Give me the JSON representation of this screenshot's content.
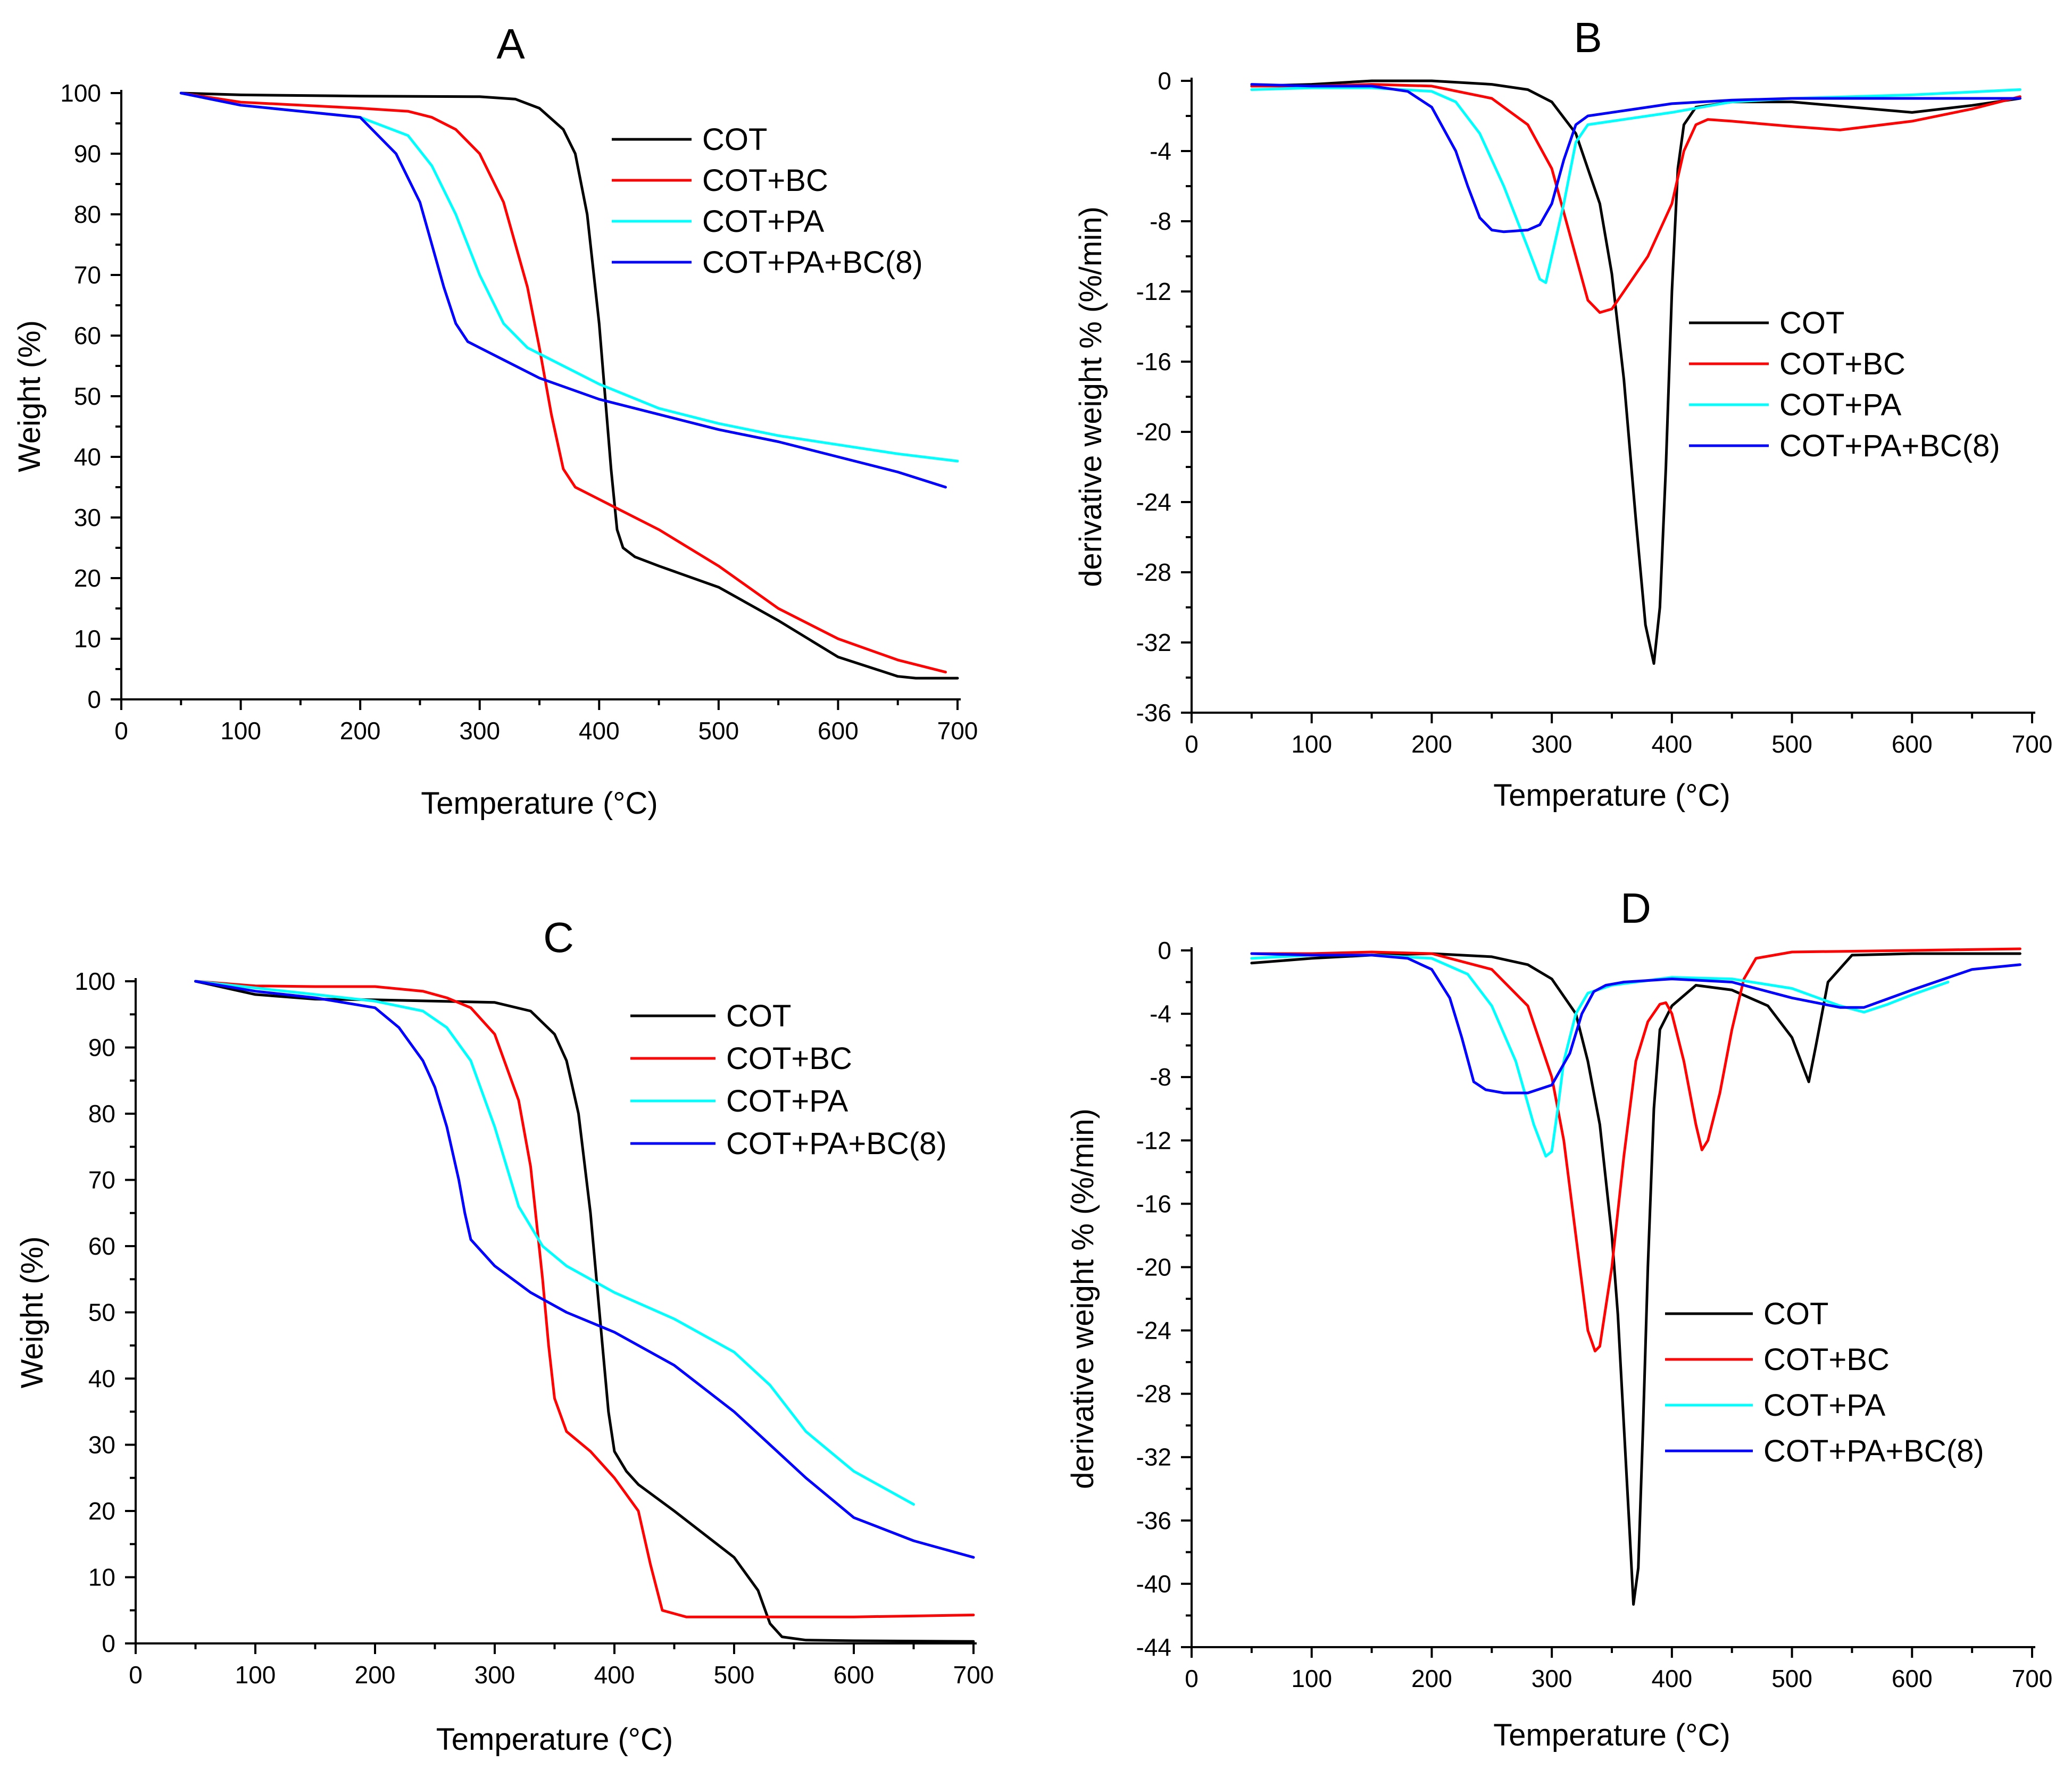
{
  "colors": {
    "COT": "#000000",
    "COT+BC": "#ff0000",
    "COT+PA": "#00ffff",
    "COT+PA+BC(8)": "#0000ff"
  },
  "chart_data": [
    {
      "panel": "A",
      "type": "line",
      "title": "A",
      "xlabel": "Temperature (°C)",
      "ylabel": "Weight (%)",
      "xlim": [
        0,
        700
      ],
      "ylim": [
        0,
        100
      ],
      "xticks": [
        0,
        100,
        200,
        300,
        400,
        500,
        600,
        700
      ],
      "yticks": [
        0,
        10,
        20,
        30,
        40,
        50,
        60,
        70,
        80,
        90,
        100
      ],
      "legend_position": "top-right",
      "series": [
        {
          "name": "COT",
          "x": [
            50,
            100,
            200,
            300,
            330,
            350,
            370,
            380,
            390,
            400,
            405,
            410,
            415,
            420,
            430,
            450,
            500,
            550,
            600,
            650,
            665,
            700
          ],
          "y": [
            100,
            99.7,
            99.5,
            99.4,
            99,
            97.5,
            94,
            90,
            80,
            62,
            50,
            38,
            28,
            25,
            23.5,
            22,
            18.5,
            13,
            7,
            3.8,
            3.5,
            3.5
          ]
        },
        {
          "name": "COT+BC",
          "x": [
            50,
            100,
            200,
            240,
            260,
            280,
            300,
            320,
            340,
            350,
            360,
            370,
            380,
            400,
            450,
            500,
            550,
            600,
            650,
            690
          ],
          "y": [
            100,
            98.5,
            97.5,
            97,
            96,
            94,
            90,
            82,
            68,
            58,
            47,
            38,
            35,
            33,
            28,
            22,
            15,
            10,
            6.5,
            4.5
          ]
        },
        {
          "name": "COT+PA",
          "x": [
            50,
            100,
            200,
            240,
            260,
            280,
            300,
            320,
            340,
            360,
            380,
            400,
            450,
            500,
            550,
            600,
            650,
            700
          ],
          "y": [
            100,
            98,
            96,
            93,
            88,
            80,
            70,
            62,
            58,
            56,
            54,
            52,
            48,
            45.5,
            43.5,
            42,
            40.5,
            39.3
          ]
        },
        {
          "name": "COT+PA+BC(8)",
          "x": [
            50,
            100,
            200,
            230,
            250,
            260,
            270,
            280,
            290,
            300,
            320,
            350,
            400,
            450,
            500,
            550,
            600,
            650,
            690
          ],
          "y": [
            100,
            98,
            96,
            90,
            82,
            75,
            68,
            62,
            59,
            58,
            56,
            53,
            49.5,
            47,
            44.5,
            42.5,
            40,
            37.5,
            35
          ]
        }
      ]
    },
    {
      "panel": "B",
      "type": "line",
      "title": "B",
      "xlabel": "Temperature (°C)",
      "ylabel": "derivative weight % (%/min)",
      "xlim": [
        0,
        700
      ],
      "ylim": [
        -36,
        0
      ],
      "xticks": [
        0,
        100,
        200,
        300,
        400,
        500,
        600,
        700
      ],
      "yticks": [
        0,
        -4,
        -8,
        -12,
        -16,
        -20,
        -24,
        -28,
        -32,
        -36
      ],
      "legend_position": "center-right",
      "series": [
        {
          "name": "COT",
          "x": [
            50,
            100,
            150,
            200,
            250,
            280,
            300,
            320,
            340,
            350,
            360,
            370,
            378,
            385,
            390,
            395,
            400,
            405,
            410,
            420,
            450,
            500,
            550,
            600,
            650,
            690
          ],
          "y": [
            -0.3,
            -0.2,
            0,
            0,
            -0.2,
            -0.5,
            -1.2,
            -3,
            -7,
            -11,
            -17,
            -25,
            -31,
            -33.2,
            -30,
            -22,
            -12,
            -5,
            -2.5,
            -1.5,
            -1.2,
            -1.2,
            -1.5,
            -1.8,
            -1.4,
            -1
          ]
        },
        {
          "name": "COT+BC",
          "x": [
            50,
            100,
            150,
            200,
            250,
            280,
            300,
            320,
            330,
            340,
            350,
            360,
            380,
            400,
            410,
            420,
            430,
            450,
            500,
            540,
            600,
            650,
            690
          ],
          "y": [
            -0.3,
            -0.3,
            -0.2,
            -0.3,
            -1,
            -2.5,
            -5,
            -10,
            -12.5,
            -13.2,
            -13,
            -12,
            -10,
            -7,
            -4,
            -2.5,
            -2.2,
            -2.3,
            -2.6,
            -2.8,
            -2.3,
            -1.6,
            -0.9
          ]
        },
        {
          "name": "COT+PA",
          "x": [
            50,
            100,
            150,
            200,
            220,
            240,
            260,
            280,
            290,
            295,
            300,
            310,
            320,
            330,
            350,
            400,
            450,
            500,
            600,
            690
          ],
          "y": [
            -0.5,
            -0.4,
            -0.4,
            -0.6,
            -1.2,
            -3,
            -6,
            -9.5,
            -11.3,
            -11.5,
            -10,
            -7,
            -3.5,
            -2.5,
            -2.3,
            -1.8,
            -1.2,
            -1,
            -0.8,
            -0.5
          ]
        },
        {
          "name": "COT+PA+BC(8)",
          "x": [
            50,
            100,
            150,
            180,
            200,
            220,
            230,
            240,
            250,
            260,
            280,
            290,
            300,
            310,
            320,
            330,
            360,
            400,
            450,
            500,
            600,
            690
          ],
          "y": [
            -0.2,
            -0.3,
            -0.3,
            -0.6,
            -1.5,
            -4,
            -6,
            -7.8,
            -8.5,
            -8.6,
            -8.5,
            -8.2,
            -7,
            -4.5,
            -2.5,
            -2,
            -1.7,
            -1.3,
            -1.1,
            -1,
            -1,
            -1
          ]
        }
      ]
    },
    {
      "panel": "C",
      "type": "line",
      "title": "C",
      "xlabel": "Temperature (°C)",
      "ylabel": "Weight (%)",
      "xlim": [
        0,
        700
      ],
      "ylim": [
        0,
        100
      ],
      "xticks": [
        0,
        100,
        200,
        300,
        400,
        500,
        600,
        700
      ],
      "yticks": [
        0,
        10,
        20,
        30,
        40,
        50,
        60,
        70,
        80,
        90,
        100
      ],
      "legend_position": "top-right",
      "series": [
        {
          "name": "COT",
          "x": [
            50,
            100,
            150,
            200,
            300,
            330,
            350,
            360,
            370,
            380,
            385,
            390,
            395,
            400,
            410,
            420,
            450,
            500,
            520,
            530,
            540,
            560,
            600,
            700
          ],
          "y": [
            100,
            98,
            97.3,
            97.2,
            96.8,
            95.5,
            92,
            88,
            80,
            65,
            55,
            45,
            35,
            29,
            26,
            24,
            20,
            13,
            8,
            3,
            1,
            0.5,
            0.4,
            0.3
          ]
        },
        {
          "name": "COT+BC",
          "x": [
            50,
            100,
            150,
            200,
            240,
            260,
            280,
            300,
            320,
            330,
            340,
            345,
            350,
            360,
            380,
            400,
            420,
            430,
            440,
            460,
            500,
            600,
            700
          ],
          "y": [
            100,
            99.3,
            99.2,
            99.2,
            98.5,
            97.5,
            96,
            92,
            82,
            72,
            55,
            45,
            37,
            32,
            29,
            25,
            20,
            12,
            5,
            4,
            4,
            4,
            4.3
          ]
        },
        {
          "name": "COT+PA",
          "x": [
            50,
            100,
            150,
            200,
            240,
            260,
            280,
            300,
            320,
            340,
            360,
            400,
            450,
            500,
            530,
            560,
            600,
            650
          ],
          "y": [
            100,
            99,
            98,
            97,
            95.5,
            93,
            88,
            78,
            66,
            60,
            57,
            53,
            49,
            44,
            39,
            32,
            26,
            21
          ]
        },
        {
          "name": "COT+PA+BC(8)",
          "x": [
            50,
            100,
            150,
            200,
            220,
            240,
            250,
            260,
            270,
            275,
            280,
            290,
            300,
            330,
            360,
            400,
            450,
            500,
            530,
            560,
            600,
            650,
            700
          ],
          "y": [
            100,
            98.5,
            97.5,
            96,
            93,
            88,
            84,
            78,
            70,
            65,
            61,
            59,
            57,
            53,
            50,
            47,
            42,
            35,
            30,
            25,
            19,
            15.5,
            13
          ]
        }
      ]
    },
    {
      "panel": "D",
      "type": "line",
      "title": "D",
      "xlabel": "Temperature (°C)",
      "ylabel": "derivative weight % (%/min)",
      "xlim": [
        0,
        700
      ],
      "ylim": [
        -44,
        0
      ],
      "xticks": [
        0,
        100,
        200,
        300,
        400,
        500,
        600,
        700
      ],
      "yticks": [
        0,
        -4,
        -8,
        -12,
        -16,
        -20,
        -24,
        -28,
        -32,
        -36,
        -40,
        -44
      ],
      "legend_position": "bottom-right",
      "series": [
        {
          "name": "COT",
          "x": [
            50,
            100,
            150,
            200,
            250,
            280,
            300,
            320,
            330,
            340,
            350,
            355,
            360,
            365,
            368,
            372,
            376,
            380,
            385,
            390,
            400,
            420,
            450,
            480,
            500,
            510,
            514,
            520,
            530,
            550,
            600,
            690
          ],
          "y": [
            -0.8,
            -0.5,
            -0.3,
            -0.2,
            -0.4,
            -0.9,
            -1.8,
            -4,
            -7,
            -11,
            -18,
            -23,
            -30,
            -37,
            -41.3,
            -39,
            -30,
            -20,
            -10,
            -5,
            -3.5,
            -2.2,
            -2.5,
            -3.5,
            -5.5,
            -7.5,
            -8.3,
            -6,
            -2,
            -0.3,
            -0.2,
            -0.2
          ]
        },
        {
          "name": "COT+BC",
          "x": [
            50,
            100,
            150,
            200,
            250,
            280,
            300,
            310,
            320,
            330,
            336,
            340,
            350,
            360,
            370,
            380,
            390,
            395,
            400,
            410,
            420,
            425,
            430,
            440,
            450,
            460,
            470,
            500,
            600,
            690
          ],
          "y": [
            -0.2,
            -0.2,
            -0.1,
            -0.2,
            -1.2,
            -3.5,
            -8,
            -12,
            -18,
            -24,
            -25.3,
            -25,
            -20,
            -13,
            -7,
            -4.5,
            -3.4,
            -3.3,
            -4,
            -7,
            -11,
            -12.6,
            -12,
            -9,
            -5,
            -1.8,
            -0.5,
            -0.1,
            0,
            0.1
          ]
        },
        {
          "name": "COT+PA",
          "x": [
            50,
            100,
            150,
            200,
            230,
            250,
            270,
            285,
            295,
            300,
            305,
            310,
            320,
            330,
            350,
            400,
            450,
            500,
            540,
            560,
            580,
            600,
            630
          ],
          "y": [
            -0.5,
            -0.3,
            -0.3,
            -0.5,
            -1.5,
            -3.5,
            -7,
            -11,
            -13,
            -12.7,
            -10,
            -7,
            -4,
            -2.7,
            -2.2,
            -1.7,
            -1.8,
            -2.4,
            -3.5,
            -3.9,
            -3.4,
            -2.8,
            -2
          ]
        },
        {
          "name": "COT+PA+BC(8)",
          "x": [
            50,
            100,
            150,
            180,
            200,
            215,
            225,
            235,
            245,
            260,
            280,
            300,
            315,
            325,
            335,
            345,
            360,
            400,
            450,
            500,
            540,
            560,
            600,
            650,
            690
          ],
          "y": [
            -0.2,
            -0.3,
            -0.3,
            -0.5,
            -1.2,
            -3,
            -5.5,
            -8.3,
            -8.8,
            -9,
            -9,
            -8.5,
            -6.5,
            -4,
            -2.6,
            -2.2,
            -2,
            -1.8,
            -2,
            -3,
            -3.6,
            -3.6,
            -2.5,
            -1.2,
            -0.9
          ]
        }
      ]
    }
  ]
}
